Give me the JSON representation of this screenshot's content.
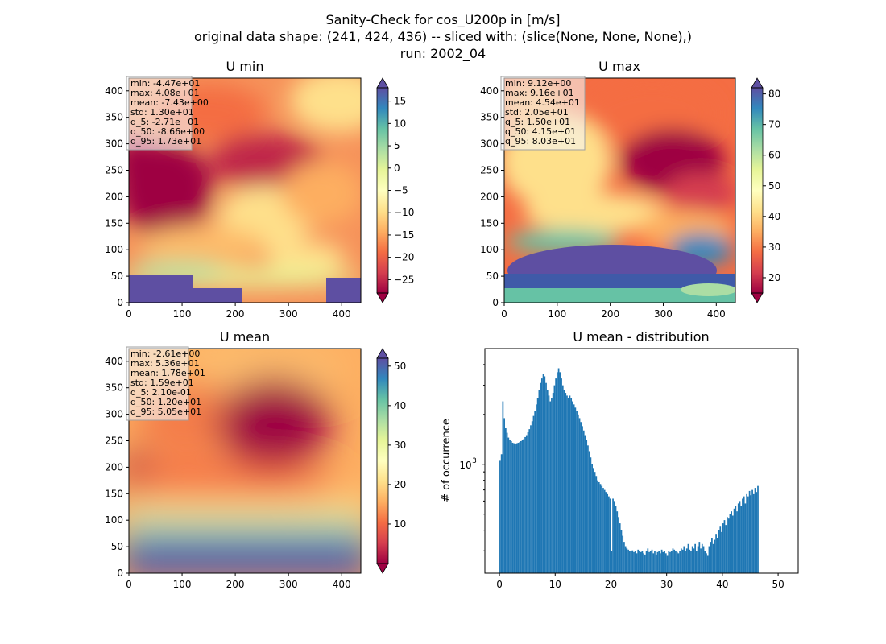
{
  "figure": {
    "title_lines": [
      "Sanity-Check for cos_U200p in [m/s]",
      "original data shape: (241, 424, 436) -- sliced with: (slice(None, None, None),)",
      "run: 2002_04"
    ]
  },
  "chart_data": [
    {
      "type": "heatmap",
      "title": "U min",
      "xlim": [
        0,
        436
      ],
      "ylim": [
        0,
        424
      ],
      "xticks": [
        0,
        100,
        200,
        300,
        400
      ],
      "yticks": [
        0,
        50,
        100,
        150,
        200,
        250,
        300,
        350,
        400
      ],
      "colormap": "Spectral",
      "colorbar": {
        "min": -28,
        "max": 18,
        "ticks": [
          -25,
          -20,
          -15,
          -10,
          -5,
          0,
          5,
          10,
          15
        ],
        "extend": "both"
      },
      "stats": [
        "min: -4.47e+01",
        "max: 4.08e+01",
        "mean: -7.43e+00",
        "std: 1.30e+01",
        "q_5: -2.71e+01",
        "q_50: -8.66e+00",
        "q_95: 1.73e+01"
      ]
    },
    {
      "type": "heatmap",
      "title": "U max",
      "xlim": [
        0,
        436
      ],
      "ylim": [
        0,
        424
      ],
      "xticks": [
        0,
        100,
        200,
        300,
        400
      ],
      "yticks": [
        0,
        50,
        100,
        150,
        200,
        250,
        300,
        350,
        400
      ],
      "colormap": "Spectral",
      "colorbar": {
        "min": 15,
        "max": 82,
        "ticks": [
          20,
          30,
          40,
          50,
          60,
          70,
          80
        ],
        "extend": "both"
      },
      "stats": [
        "min: 9.12e+00",
        "max: 9.16e+01",
        "mean: 4.54e+01",
        "std: 2.05e+01",
        "q_5: 1.50e+01",
        "q_50: 4.15e+01",
        "q_95: 8.03e+01"
      ]
    },
    {
      "type": "heatmap",
      "title": "U mean",
      "xlim": [
        0,
        436
      ],
      "ylim": [
        0,
        424
      ],
      "xticks": [
        0,
        100,
        200,
        300,
        400
      ],
      "yticks": [
        0,
        50,
        100,
        150,
        200,
        250,
        300,
        350,
        400
      ],
      "colormap": "Spectral",
      "colorbar": {
        "min": 0,
        "max": 52,
        "ticks": [
          10,
          20,
          30,
          40,
          50
        ],
        "extend": "both"
      },
      "stats": [
        "min: -2.61e+00",
        "max: 5.36e+01",
        "mean: 1.78e+01",
        "std: 1.59e+01",
        "q_5: 2.10e-01",
        "q_50: 1.20e+01",
        "q_95: 5.05e+01"
      ]
    },
    {
      "type": "bar",
      "title": "U mean - distribution",
      "xlabel": "",
      "ylabel": "# of occurrence",
      "xlim": [
        -2.61,
        53.6
      ],
      "xticks": [
        0,
        10,
        20,
        30,
        40,
        50
      ],
      "yscale": "log",
      "ylim": [
        220,
        5000
      ],
      "yticks": [
        1000
      ],
      "ytick_labels": [
        "10^3"
      ],
      "bar_color": "#1f77b4",
      "bin_width": 0.25,
      "bins_start": 0,
      "counts": [
        1050,
        1150,
        2400,
        1900,
        1650,
        1550,
        1450,
        1400,
        1380,
        1350,
        1340,
        1330,
        1340,
        1350,
        1360,
        1380,
        1400,
        1420,
        1460,
        1500,
        1560,
        1630,
        1720,
        1820,
        1960,
        2100,
        2300,
        2500,
        2800,
        3100,
        3300,
        3500,
        3400,
        3100,
        2800,
        2600,
        2400,
        2500,
        2700,
        3000,
        3300,
        3600,
        3800,
        3600,
        3300,
        3000,
        2800,
        2700,
        2600,
        2500,
        2600,
        2500,
        2400,
        2300,
        2200,
        2100,
        2000,
        1900,
        1800,
        1700,
        1600,
        1500,
        1400,
        1300,
        1200,
        1100,
        1000,
        950,
        900,
        850,
        800,
        780,
        760,
        740,
        720,
        700,
        680,
        660,
        640,
        620,
        300,
        620,
        600,
        560,
        520,
        480,
        440,
        400,
        370,
        340,
        320,
        310,
        305,
        300,
        298,
        302,
        295,
        300,
        290,
        305,
        300,
        295,
        300,
        290,
        285,
        300,
        310,
        295,
        300,
        305,
        290,
        300,
        285,
        295,
        300,
        290,
        305,
        295,
        300,
        290,
        280,
        300,
        295,
        300,
        310,
        305,
        300,
        295,
        290,
        300,
        310,
        305,
        320,
        300,
        310,
        330,
        305,
        300,
        320,
        310,
        330,
        300,
        320,
        340,
        310,
        330,
        320,
        300,
        290,
        280,
        320,
        340,
        360,
        330,
        350,
        380,
        360,
        400,
        420,
        390,
        440,
        460,
        430,
        480,
        470,
        500,
        520,
        490,
        540,
        560,
        520,
        580,
        600,
        560,
        620,
        640,
        580,
        660,
        640,
        690,
        650,
        700,
        660,
        720,
        680,
        740
      ]
    }
  ]
}
